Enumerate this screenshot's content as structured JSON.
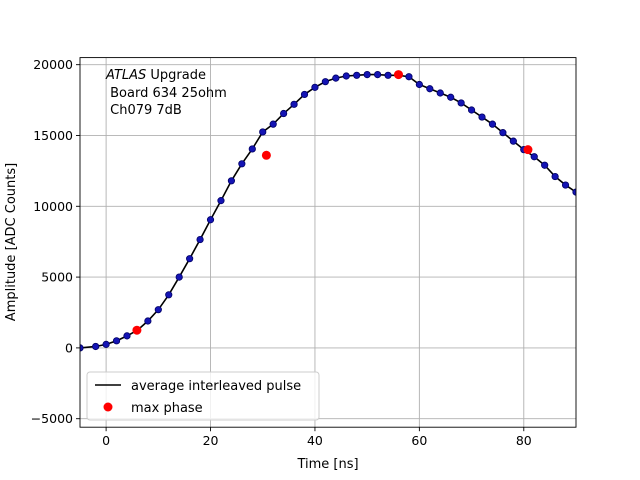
{
  "chart_data": {
    "type": "scatter",
    "xlabel": "Time [ns]",
    "ylabel": "Amplitude [ADC Counts]",
    "xlim": [
      -5,
      90
    ],
    "ylim": [
      -5600,
      20500
    ],
    "xticks": [
      0,
      20,
      40,
      60,
      80
    ],
    "yticks": [
      -5000,
      0,
      5000,
      10000,
      15000,
      20000
    ],
    "xtick_labels": [
      "0",
      "20",
      "40",
      "60",
      "80"
    ],
    "ytick_labels": [
      "−5000",
      "0",
      "5000",
      "10000",
      "15000",
      "20000"
    ],
    "grid": true,
    "legend_position": "lower-left",
    "annotation": {
      "italic": "ATLAS",
      "line1_rest": " Upgrade",
      "line2": " Board 634 25ohm",
      "line3": " Ch079 7dB"
    },
    "series": [
      {
        "name": "average interleaved pulse",
        "kind": "line",
        "color": "#000000",
        "x": [
          -5,
          -2,
          0,
          2,
          4,
          6,
          8,
          10,
          12,
          14,
          16,
          18,
          20,
          22,
          24,
          26,
          28,
          30,
          32,
          34,
          36,
          38,
          40,
          42,
          44,
          46,
          48,
          50,
          52,
          54,
          56,
          58,
          60,
          62,
          64,
          66,
          68,
          70,
          72,
          74,
          76,
          78,
          80,
          82,
          84,
          86,
          88,
          90
        ],
        "y": [
          0,
          100,
          250,
          500,
          850,
          1250,
          1900,
          2700,
          3750,
          5000,
          6300,
          7650,
          9050,
          10400,
          11800,
          13000,
          14050,
          15250,
          15800,
          16550,
          17200,
          17900,
          18400,
          18800,
          19050,
          19200,
          19250,
          19300,
          19300,
          19250,
          19250,
          19150,
          18600,
          18300,
          18000,
          17700,
          17300,
          16800,
          16300,
          15800,
          15200,
          14600,
          14000,
          13500,
          12900,
          12100,
          11500,
          11000
        ]
      },
      {
        "name": "",
        "kind": "points",
        "color": "#1414b4",
        "edge_color": "#000066",
        "x": [
          -5,
          -2,
          0,
          2,
          4,
          6,
          8,
          10,
          12,
          14,
          16,
          18,
          20,
          22,
          24,
          26,
          28,
          30,
          32,
          34,
          36,
          38,
          40,
          42,
          44,
          46,
          48,
          50,
          52,
          54,
          56,
          58,
          60,
          62,
          64,
          66,
          68,
          70,
          72,
          74,
          76,
          78,
          80,
          82,
          84,
          86,
          88,
          90
        ],
        "y": [
          0,
          100,
          250,
          500,
          850,
          1250,
          1900,
          2700,
          3750,
          5000,
          6300,
          7650,
          9050,
          10400,
          11800,
          13000,
          14050,
          15250,
          15800,
          16550,
          17200,
          17900,
          18400,
          18800,
          19050,
          19200,
          19250,
          19300,
          19300,
          19250,
          19250,
          19150,
          18600,
          18300,
          18000,
          17700,
          17300,
          16800,
          16300,
          15800,
          15200,
          14600,
          14000,
          13500,
          12900,
          12100,
          11500,
          11000
        ]
      },
      {
        "name": "max phase",
        "kind": "points",
        "color": "#ff0000",
        "x": [
          5.9,
          30.7,
          56.0,
          80.8
        ],
        "y": [
          1250,
          13600,
          19300,
          14000
        ]
      }
    ]
  }
}
